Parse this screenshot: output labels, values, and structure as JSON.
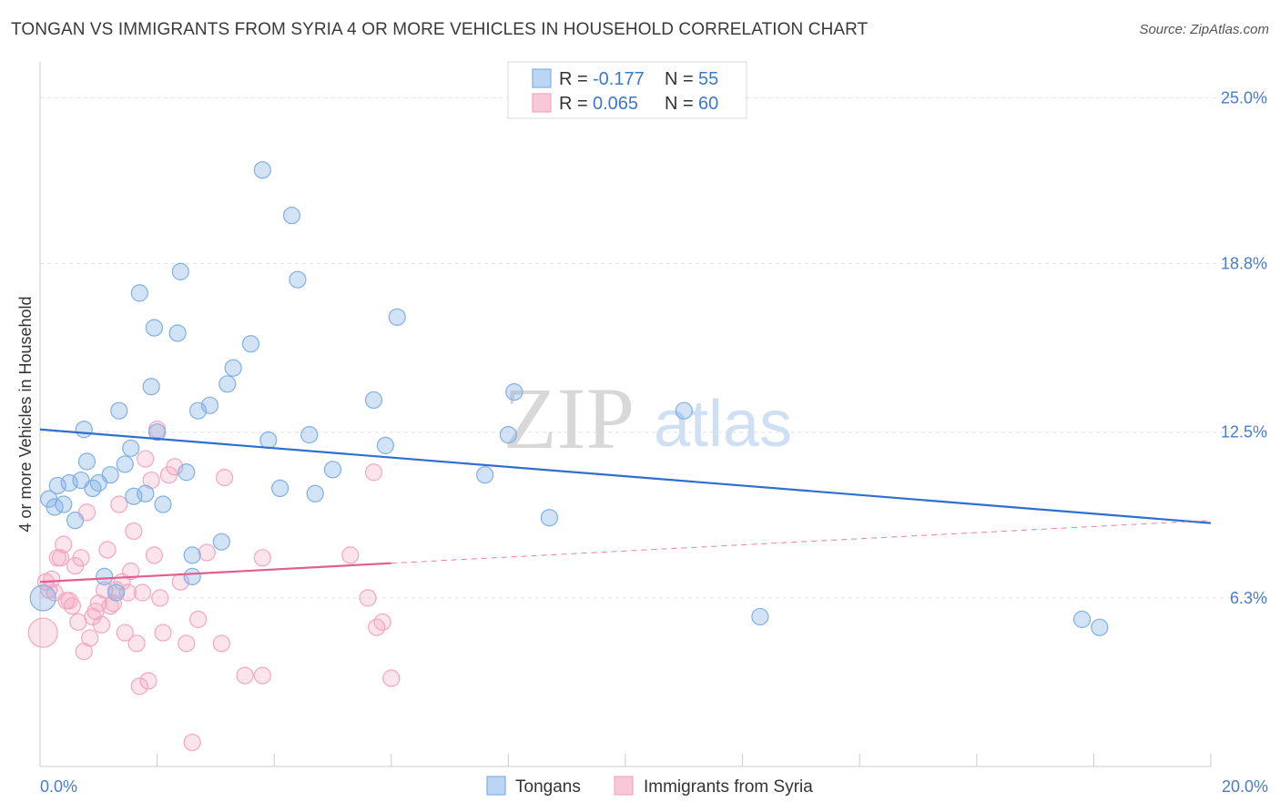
{
  "title": "TONGAN VS IMMIGRANTS FROM SYRIA 4 OR MORE VEHICLES IN HOUSEHOLD CORRELATION CHART",
  "source": "Source: ZipAtlas.com",
  "watermark": {
    "zip": "ZIP",
    "atlas": "atlas"
  },
  "legend_box": {
    "rows": [
      {
        "r_label": "R = ",
        "r_value": "-0.177",
        "n_label": "N = ",
        "n_value": "55"
      },
      {
        "r_label": "R = ",
        "r_value": "0.065",
        "n_label": "N = ",
        "n_value": "60"
      }
    ]
  },
  "bottom_legend": [
    "Tongans",
    "Immigrants from Syria"
  ],
  "chart_data": {
    "type": "scatter",
    "title": "TONGAN VS IMMIGRANTS FROM SYRIA 4 OR MORE VEHICLES IN HOUSEHOLD CORRELATION CHART",
    "xlabel": "",
    "ylabel": "4 or more Vehicles in Household",
    "xlim": [
      0,
      20
    ],
    "ylim": [
      0,
      26
    ],
    "x_tick_labels": [
      "0.0%",
      "20.0%"
    ],
    "y_ticks": [
      6.3,
      12.5,
      18.8,
      25.0
    ],
    "y_tick_labels": [
      "6.3%",
      "12.5%",
      "18.8%",
      "25.0%"
    ],
    "grid": "horizontal-dashed",
    "legend_position": "top-center",
    "colors": {
      "tongans": "#7fb0e6",
      "tongans_line": "#2e6fcf",
      "syria": "#f4a6bf",
      "syria_line": "#e05f8f"
    },
    "series": [
      {
        "name": "Tongans",
        "trend": {
          "x": [
            0,
            20
          ],
          "y": [
            12.6,
            9.1
          ]
        },
        "points": [
          [
            0.05,
            6.3
          ],
          [
            0.15,
            10.0
          ],
          [
            0.25,
            9.7
          ],
          [
            0.3,
            10.5
          ],
          [
            0.4,
            9.8
          ],
          [
            0.5,
            10.6
          ],
          [
            0.6,
            9.2
          ],
          [
            0.7,
            10.7
          ],
          [
            0.75,
            12.6
          ],
          [
            0.8,
            11.4
          ],
          [
            0.9,
            10.4
          ],
          [
            1.0,
            10.6
          ],
          [
            1.1,
            7.1
          ],
          [
            1.2,
            10.9
          ],
          [
            1.3,
            6.5
          ],
          [
            1.35,
            13.3
          ],
          [
            1.45,
            11.3
          ],
          [
            1.55,
            11.9
          ],
          [
            1.6,
            10.1
          ],
          [
            1.7,
            17.7
          ],
          [
            1.8,
            10.2
          ],
          [
            1.9,
            14.2
          ],
          [
            1.95,
            16.4
          ],
          [
            2.0,
            12.5
          ],
          [
            2.1,
            9.8
          ],
          [
            2.35,
            16.2
          ],
          [
            2.4,
            18.5
          ],
          [
            2.5,
            11.0
          ],
          [
            2.6,
            7.1
          ],
          [
            2.6,
            7.9
          ],
          [
            2.7,
            13.3
          ],
          [
            2.9,
            13.5
          ],
          [
            3.1,
            8.4
          ],
          [
            3.2,
            14.3
          ],
          [
            3.3,
            14.9
          ],
          [
            3.6,
            15.8
          ],
          [
            3.8,
            22.3
          ],
          [
            3.9,
            12.2
          ],
          [
            4.1,
            10.4
          ],
          [
            4.3,
            20.6
          ],
          [
            4.4,
            18.2
          ],
          [
            4.6,
            12.4
          ],
          [
            4.7,
            10.2
          ],
          [
            5.0,
            11.1
          ],
          [
            5.7,
            13.7
          ],
          [
            5.9,
            12.0
          ],
          [
            6.1,
            16.8
          ],
          [
            7.6,
            10.9
          ],
          [
            8.0,
            12.4
          ],
          [
            8.1,
            14.0
          ],
          [
            8.7,
            9.3
          ],
          [
            11.0,
            13.3
          ],
          [
            12.3,
            5.6
          ],
          [
            17.8,
            5.5
          ],
          [
            18.1,
            5.2
          ]
        ]
      },
      {
        "name": "Immigrants from Syria",
        "trend": {
          "x": [
            0,
            6
          ],
          "y": [
            6.9,
            7.6
          ]
        },
        "trend_dashed": {
          "x": [
            6,
            20
          ],
          "y": [
            7.6,
            9.2
          ]
        },
        "points": [
          [
            0.05,
            5.0
          ],
          [
            0.1,
            6.9
          ],
          [
            0.15,
            6.6
          ],
          [
            0.2,
            7.0
          ],
          [
            0.25,
            6.5
          ],
          [
            0.3,
            7.8
          ],
          [
            0.35,
            7.8
          ],
          [
            0.4,
            8.3
          ],
          [
            0.45,
            6.2
          ],
          [
            0.5,
            6.2
          ],
          [
            0.55,
            6.0
          ],
          [
            0.6,
            7.5
          ],
          [
            0.65,
            5.4
          ],
          [
            0.7,
            7.8
          ],
          [
            0.75,
            4.3
          ],
          [
            0.8,
            9.5
          ],
          [
            0.85,
            4.8
          ],
          [
            0.9,
            5.6
          ],
          [
            0.95,
            5.8
          ],
          [
            1.0,
            6.1
          ],
          [
            1.05,
            5.3
          ],
          [
            1.1,
            6.6
          ],
          [
            1.15,
            8.1
          ],
          [
            1.2,
            6.0
          ],
          [
            1.25,
            6.1
          ],
          [
            1.3,
            6.6
          ],
          [
            1.35,
            9.8
          ],
          [
            1.4,
            6.9
          ],
          [
            1.45,
            5.0
          ],
          [
            1.5,
            6.5
          ],
          [
            1.55,
            7.3
          ],
          [
            1.6,
            8.8
          ],
          [
            1.65,
            4.6
          ],
          [
            1.7,
            3.0
          ],
          [
            1.75,
            6.5
          ],
          [
            1.8,
            11.5
          ],
          [
            1.85,
            3.2
          ],
          [
            1.9,
            10.7
          ],
          [
            1.95,
            7.9
          ],
          [
            2.0,
            12.6
          ],
          [
            2.05,
            6.3
          ],
          [
            2.1,
            5.0
          ],
          [
            2.2,
            10.9
          ],
          [
            2.3,
            11.2
          ],
          [
            2.4,
            6.9
          ],
          [
            2.5,
            4.6
          ],
          [
            2.6,
            0.9
          ],
          [
            2.7,
            5.5
          ],
          [
            2.85,
            8.0
          ],
          [
            3.1,
            4.6
          ],
          [
            3.15,
            10.8
          ],
          [
            3.5,
            3.4
          ],
          [
            3.8,
            3.4
          ],
          [
            3.8,
            7.8
          ],
          [
            5.3,
            7.9
          ],
          [
            5.6,
            6.3
          ],
          [
            5.7,
            11.0
          ],
          [
            5.75,
            5.2
          ],
          [
            5.85,
            5.4
          ],
          [
            6.0,
            3.3
          ]
        ]
      }
    ]
  }
}
